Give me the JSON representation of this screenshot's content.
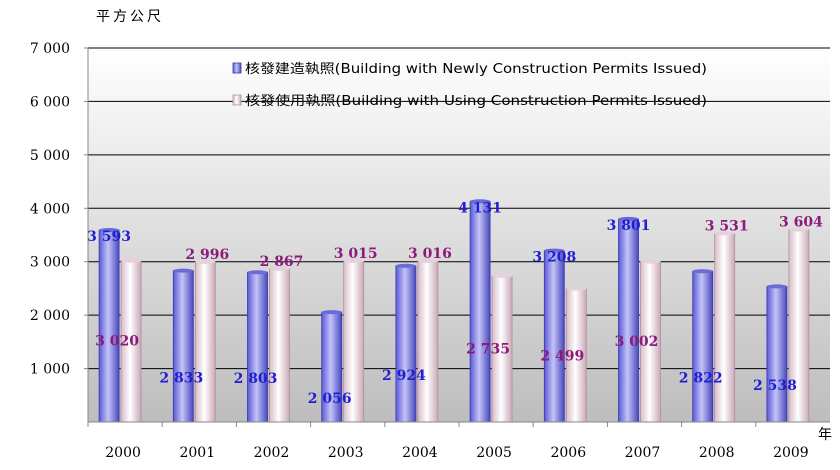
{
  "chart_data": {
    "type": "bar",
    "unit_label": "平方公尺",
    "x_unit_label": "年",
    "categories": [
      "2000",
      "2001",
      "2002",
      "2003",
      "2004",
      "2005",
      "2006",
      "2007",
      "2008",
      "2009"
    ],
    "series": [
      {
        "name": "核發建造執照(Building with Newly Construction Permits Issued)",
        "values": [
          3593,
          2833,
          2803,
          2056,
          2924,
          4131,
          3208,
          3801,
          2822,
          2538
        ],
        "labels": [
          "3 593",
          "2 833",
          "2 803",
          "2 056",
          "2 924",
          "4 131",
          "3 208",
          "3 801",
          "2 822",
          "2 538"
        ],
        "color": "#8080e0",
        "label_color": "#1f1fd0"
      },
      {
        "name": "核發使用執照(Building with Using Construction Permits Issued)",
        "values": [
          3020,
          2996,
          2867,
          3015,
          3016,
          2735,
          2499,
          3002,
          3531,
          3604
        ],
        "labels": [
          "3 020",
          "2 996",
          "2 867",
          "3 015",
          "3 016",
          "2 735",
          "2 499",
          "3 002",
          "3 531",
          "3 604"
        ],
        "color": "#f2e2ea",
        "label_color": "#8b1a7a"
      }
    ],
    "yticks": [
      1000,
      2000,
      3000,
      4000,
      5000,
      6000,
      7000
    ],
    "ytick_labels": [
      "1 000",
      "2 000",
      "3 000",
      "4 000",
      "5 000",
      "6 000",
      "7 000"
    ],
    "ylim": [
      0,
      7000
    ],
    "grid": true,
    "legend_position": "top-center"
  }
}
